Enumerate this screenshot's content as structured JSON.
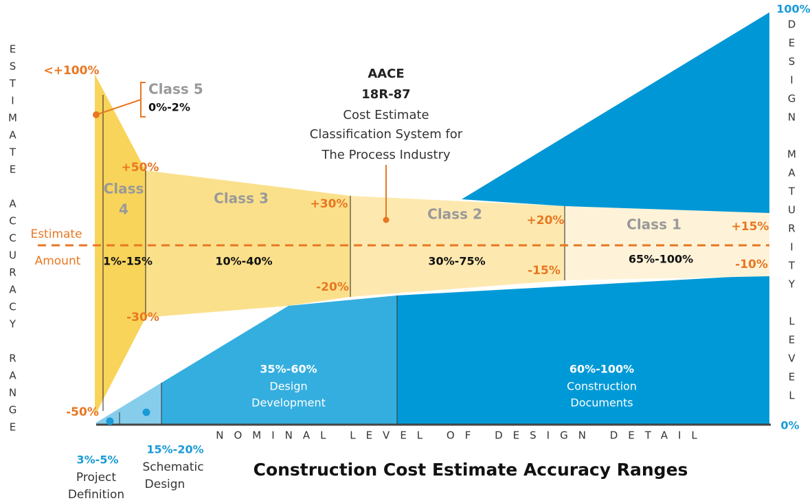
{
  "title": "Construction Cost Estimate Accuracy Ranges",
  "left_axis_label": "ESTIMATE ACCURACY RANGE",
  "right_axis_label": "DESIGN MATURITY LEVEL",
  "bottom_axis_label": "NOMINAL LEVEL OF DESIGN DETAIL",
  "right_axis_ticks": [
    "100%",
    "0%"
  ],
  "estimate_amount": [
    "Estimate",
    "Amount"
  ],
  "center_label": {
    "line1": "AACE",
    "line2": "18R-87",
    "description": [
      "Cost Estimate",
      "Classification System for",
      "The Process Industry"
    ]
  },
  "classes": [
    {
      "name": [
        "Class 5"
      ],
      "range": "0%-2%",
      "upper": "<+100%",
      "lower": "-50%"
    },
    {
      "name": [
        "Class",
        "4"
      ],
      "range": "1%-15%",
      "upper": "+50%",
      "lower": "-30%"
    },
    {
      "name": [
        "Class 3"
      ],
      "range": "10%-40%",
      "upper": "+30%",
      "lower": "-20%"
    },
    {
      "name": [
        "Class 2"
      ],
      "range": "30%-75%",
      "upper": "+20%",
      "lower": "-15%"
    },
    {
      "name": [
        "Class 1"
      ],
      "range": "65%-100%",
      "upper": "+15%",
      "lower": "-10%"
    }
  ],
  "design_phases": [
    {
      "range": "3%-5%",
      "name": [
        "Project",
        "Definition"
      ]
    },
    {
      "range": "15%-20%",
      "name": [
        "Schematic",
        "Design"
      ]
    },
    {
      "range": "35%-60%",
      "name": [
        "Design",
        "Development"
      ]
    },
    {
      "range": "60%-100%",
      "name": [
        "Construction",
        "Documents"
      ]
    }
  ]
}
